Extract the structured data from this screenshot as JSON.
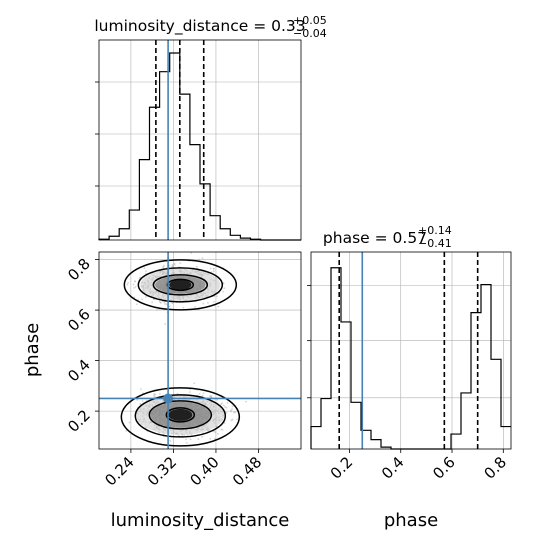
{
  "chart_data": {
    "type": "corner",
    "parameters": [
      "luminosity_distance",
      "phase"
    ],
    "panel_titles": {
      "luminosity_distance": {
        "text": "luminosity_distance = 0.33",
        "sup": "+0.05",
        "sub": "−0.04"
      },
      "phase": {
        "text": "phase = 0.57",
        "sup": "+0.14",
        "sub": "−0.41"
      }
    },
    "axis_labels": {
      "x_left": "luminosity_distance",
      "x_right": "phase",
      "y_left": "phase"
    },
    "ticks": {
      "luminosity_distance": {
        "values": [
          0.24,
          0.32,
          0.4,
          0.48
        ],
        "labels": [
          "0.24",
          "0.32",
          "0.40",
          "0.48"
        ]
      },
      "phase_x": {
        "values": [
          0.2,
          0.4,
          0.6,
          0.8
        ],
        "labels": [
          "0.2",
          "0.4",
          "0.6",
          "0.8"
        ]
      },
      "phase_y": {
        "values": [
          0.2,
          0.4,
          0.6,
          0.8
        ],
        "labels": [
          "0.2",
          "0.4",
          "0.6",
          "0.8"
        ]
      }
    },
    "ranges": {
      "luminosity_distance": [
        0.18,
        0.56
      ],
      "phase": [
        0.05,
        0.83
      ]
    },
    "truth": {
      "luminosity_distance": 0.31,
      "phase": 0.25
    },
    "quantiles": {
      "luminosity_distance": [
        0.287,
        0.332,
        0.377
      ],
      "phase": [
        0.16,
        0.57,
        0.7
      ]
    },
    "histograms": {
      "luminosity_distance": {
        "edges": [
          0.18,
          0.199,
          0.218,
          0.237,
          0.256,
          0.275,
          0.294,
          0.313,
          0.332,
          0.351,
          0.37,
          0.389,
          0.408,
          0.427,
          0.446,
          0.465,
          0.484,
          0.503,
          0.522,
          0.541,
          0.56
        ],
        "counts": [
          0.4,
          2,
          6,
          16,
          43,
          71,
          90,
          100,
          78,
          51,
          30,
          13,
          6,
          2.5,
          1,
          0.4,
          0,
          0,
          0,
          0
        ]
      },
      "phase": {
        "edges": [
          0.05,
          0.089,
          0.128,
          0.167,
          0.206,
          0.245,
          0.284,
          0.323,
          0.362,
          0.401,
          0.44,
          0.479,
          0.518,
          0.557,
          0.596,
          0.635,
          0.674,
          0.713,
          0.752,
          0.791,
          0.83
        ],
        "counts": [
          12,
          27,
          97,
          68,
          25,
          10,
          5,
          1,
          0,
          0,
          0,
          0,
          0,
          0,
          8,
          30,
          73,
          88,
          48,
          12
        ]
      }
    },
    "grid": true,
    "colors": {
      "truth": "#4682b4",
      "contour": "#000000",
      "scatter": "#b0b0b0",
      "grid": "#b0b0b0"
    }
  }
}
